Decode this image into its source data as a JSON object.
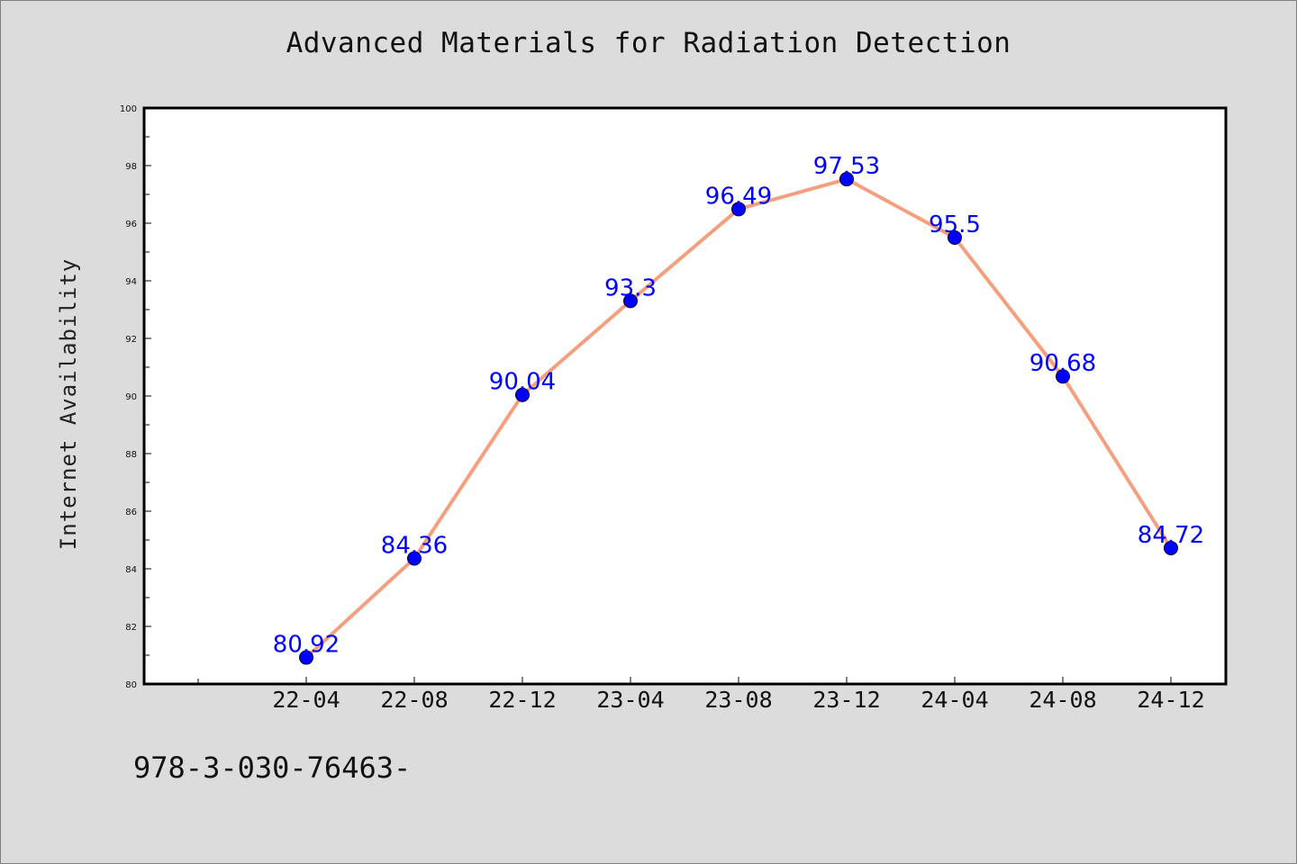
{
  "chart_data": {
    "type": "line",
    "title": "Advanced Materials for Radiation Detection",
    "xlabel": "",
    "ylabel": "Internet Availability",
    "categories": [
      "22-04",
      "22-08",
      "22-12",
      "23-04",
      "23-08",
      "23-12",
      "24-04",
      "24-08",
      "24-12"
    ],
    "values": [
      80.92,
      84.36,
      90.04,
      93.3,
      96.49,
      97.53,
      95.5,
      90.68,
      84.72
    ],
    "data_labels": [
      "80.92",
      "84.36",
      "90.04",
      "93.3",
      "96.49",
      "97.53",
      "95.5",
      "90.68",
      "84.72"
    ],
    "ylim": [
      80,
      100
    ],
    "yticks": [
      80,
      82,
      84,
      86,
      88,
      90,
      92,
      94,
      96,
      98,
      100
    ],
    "grid": false,
    "legend": "none",
    "colors": {
      "line": "#f4a07f",
      "marker": "#0000ff",
      "data_label": "#0000ff",
      "background": "#dcdcdc",
      "plot_background": "#ffffff"
    }
  },
  "footer": {
    "text": "978-3-030-76463-"
  }
}
